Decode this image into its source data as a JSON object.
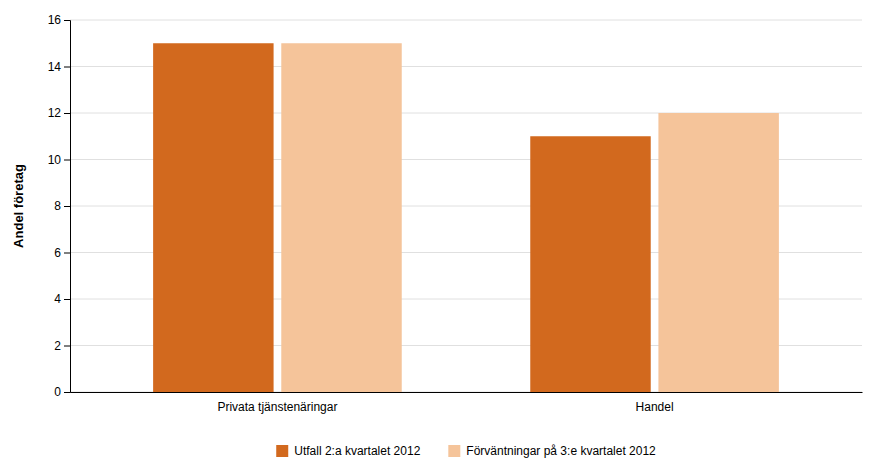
{
  "chart_data": {
    "type": "bar",
    "categories": [
      "Privata tjänstenäringar",
      "Handel"
    ],
    "series": [
      {
        "name": "Utfall 2:a kvartalet 2012",
        "color": "#D2691E",
        "values": [
          15,
          11
        ]
      },
      {
        "name": "Förväntningar på 3:e kvartalet 2012",
        "color": "#F5C49A",
        "values": [
          15,
          12
        ]
      }
    ],
    "ylabel": "Andel företag",
    "ylim": [
      0,
      16
    ],
    "yticks": [
      0,
      2,
      4,
      6,
      8,
      10,
      12,
      14,
      16
    ],
    "grid": true,
    "legend": "bottom"
  }
}
